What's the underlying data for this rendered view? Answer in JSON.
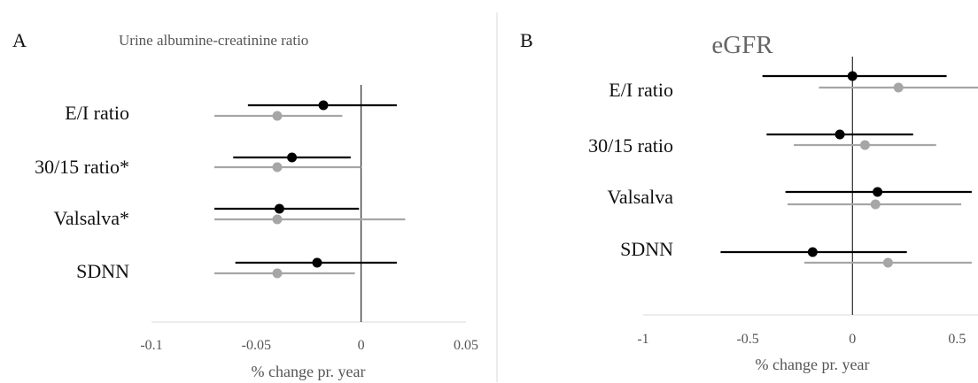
{
  "chart_data": [
    {
      "type": "scatter",
      "panel_label": "A",
      "title": "Urine albumine-creatinine ratio",
      "xlabel": "% change pr. year",
      "xlim": [
        -0.1,
        0.05
      ],
      "xticks": [
        "-0.1",
        "-0.05",
        "0",
        "0.05"
      ],
      "xtick_values": [
        -0.1,
        -0.05,
        0,
        0.05
      ],
      "categories": [
        "E/I ratio",
        "30/15 ratio*",
        "Valsalva*",
        "SDNN"
      ],
      "series": [
        {
          "color": "#000000",
          "estimate": [
            -0.018,
            -0.033,
            -0.039,
            -0.021
          ],
          "lower": [
            -0.054,
            -0.061,
            -0.07,
            -0.06
          ],
          "upper": [
            0.017,
            -0.005,
            -0.001,
            0.017
          ]
        },
        {
          "color": "#a6a6a6",
          "estimate": [
            -0.04,
            -0.04,
            -0.04,
            -0.04
          ],
          "lower": [
            -0.07,
            -0.07,
            -0.07,
            -0.07
          ],
          "upper": [
            -0.009,
            0.0,
            0.021,
            -0.003
          ]
        }
      ]
    },
    {
      "type": "scatter",
      "panel_label": "B",
      "title": "eGFR",
      "xlabel": "% change pr. year",
      "xlim": [
        -1,
        0.6
      ],
      "xticks": [
        "-1",
        "-0.5",
        "0",
        "0.5"
      ],
      "xtick_values": [
        -1,
        -0.5,
        0,
        0.5
      ],
      "categories": [
        "E/I ratio",
        "30/15 ratio",
        "Valsalva",
        "SDNN"
      ],
      "series": [
        {
          "color": "#000000",
          "estimate": [
            0.0,
            -0.06,
            0.12,
            -0.19
          ],
          "lower": [
            -0.43,
            -0.41,
            -0.32,
            -0.63
          ],
          "upper": [
            0.45,
            0.29,
            0.57,
            0.26
          ]
        },
        {
          "color": "#a6a6a6",
          "estimate": [
            0.22,
            0.06,
            0.11,
            0.17
          ],
          "lower": [
            -0.16,
            -0.28,
            -0.31,
            -0.23
          ],
          "upper": [
            0.6,
            0.4,
            0.52,
            0.57
          ]
        }
      ]
    }
  ]
}
